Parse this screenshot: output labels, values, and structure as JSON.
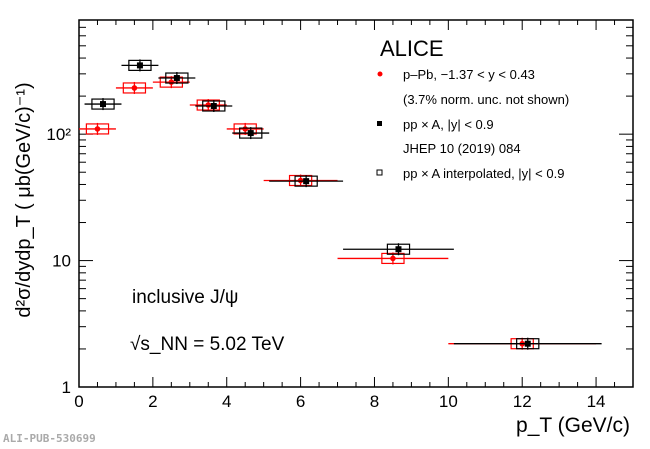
{
  "chart_data": {
    "type": "scatter",
    "title": "ALICE",
    "xlabel": "p_T (GeV/c)",
    "ylabel": "d²σ/dydp_T ( μb(GeV/c)⁻¹)",
    "xlim": [
      0,
      15
    ],
    "ylim": [
      1,
      800
    ],
    "yscale": "log",
    "xticks": [
      "0",
      "2",
      "4",
      "6",
      "8",
      "10",
      "12",
      "14"
    ],
    "yticks": [
      "1",
      "10",
      "10²"
    ],
    "annotations": [
      "inclusive J/ψ",
      "√s_NN = 5.02 TeV"
    ],
    "series": [
      {
        "name": "p–Pb, −1.37 < y < 0.43",
        "note": "(3.7% norm. unc. not shown)",
        "color": "#ff0000",
        "marker": "circle",
        "x": [
          0.5,
          1.5,
          2.5,
          3.5,
          4.5,
          6,
          8.5,
          12
        ],
        "xerr": [
          0.5,
          0.5,
          0.5,
          0.5,
          0.5,
          1,
          1.5,
          2
        ],
        "y": [
          110,
          232,
          258,
          170,
          110,
          43,
          10.4,
          2.2
        ]
      },
      {
        "name": "pp × A,  |y| < 0.9",
        "note": "JHEP 10 (2019) 084",
        "color": "#000000",
        "marker": "square",
        "x": [
          0.65,
          1.65,
          2.65,
          3.65,
          4.65,
          6.15,
          8.65,
          12.15
        ],
        "xerr": [
          0.5,
          0.5,
          0.5,
          0.5,
          0.5,
          1,
          1.5,
          2
        ],
        "y": [
          173,
          350,
          278,
          167,
          102,
          42.5,
          12.3,
          2.2
        ]
      },
      {
        "name": "pp × A interpolated,  |y| < 0.9",
        "color": "#000000",
        "marker": "open-square",
        "x": [],
        "y": []
      }
    ]
  },
  "footer": "ALI-PUB-530699"
}
